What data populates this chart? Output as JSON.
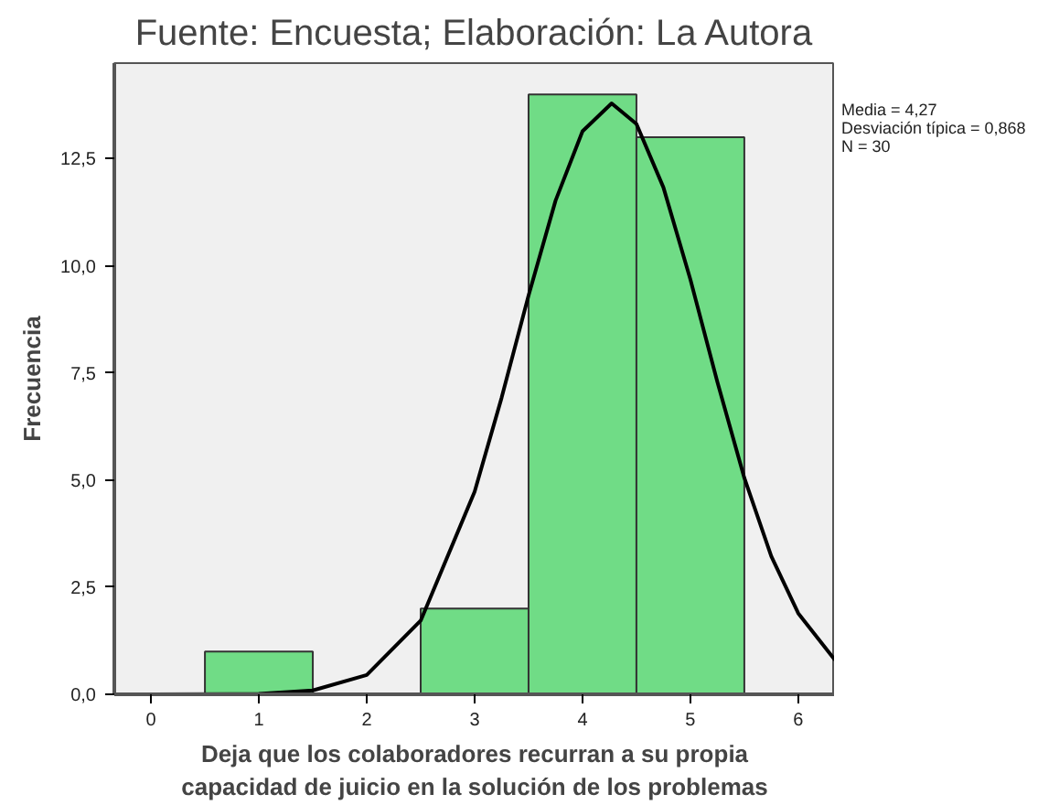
{
  "chart_data": {
    "type": "histogram",
    "xlabel": "Deja que los colaboradores recurran a su propia\ncapacidad de juicio en la solución de los problemas",
    "ylabel": "Frecuencia",
    "annotations": [
      "Fuente: Encuesta; Elaboración: La Autora",
      "Media = 4,27\nDesviación típica = 0,868\nN = 30"
    ],
    "bins": [
      0.5,
      1.5,
      2.5,
      3.5,
      4.5,
      5.5
    ],
    "values": [
      1,
      0,
      2,
      14,
      13
    ],
    "color": "#70dc86",
    "series": [
      {
        "type": "line",
        "color": "#000000",
        "x": [
          0,
          1,
          1.5,
          2,
          2.5,
          3,
          3.25,
          3.5,
          3.75,
          4,
          4.27,
          4.5,
          4.75,
          5,
          5.25,
          5.5,
          5.75,
          6,
          6.34
        ],
        "values": [
          0,
          0.01,
          0.09,
          0.45,
          1.72,
          4.73,
          6.92,
          9.31,
          11.52,
          13.14,
          13.79,
          13.31,
          11.83,
          9.68,
          7.29,
          5.05,
          3.22,
          1.89,
          0.8
        ]
      }
    ],
    "xlim": [
      -0.34,
      6.34
    ],
    "ylim": [
      0,
      14.73
    ],
    "xticks": [
      0,
      1,
      2,
      3,
      4,
      5,
      6
    ],
    "yticks": [
      {
        "value": 0,
        "label": "0,0"
      },
      {
        "value": 2.5,
        "label": "2,5"
      },
      {
        "value": 5,
        "label": "5,0"
      },
      {
        "value": 7.5,
        "label": "7,5"
      },
      {
        "value": 10,
        "label": "10,0"
      },
      {
        "value": 12.5,
        "label": "12,5"
      }
    ],
    "grid": false
  }
}
